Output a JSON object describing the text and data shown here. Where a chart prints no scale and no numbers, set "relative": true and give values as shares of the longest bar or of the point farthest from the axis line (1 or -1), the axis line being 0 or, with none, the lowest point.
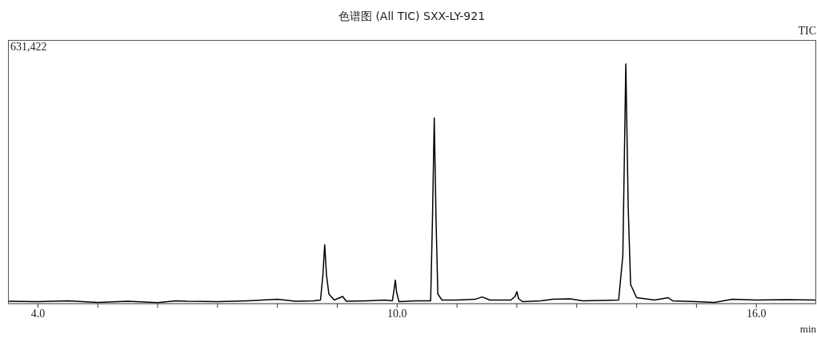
{
  "chart_data": {
    "type": "line",
    "title": "色谱图 (All TIC) SXX-LY-921",
    "xlabel": "min",
    "relative": true,
    "xlim": [
      3.5,
      17.0
    ],
    "xticks": [
      {
        "value": 4,
        "label": "4.0"
      },
      {
        "value": 5,
        "label": null
      },
      {
        "value": 6,
        "label": null
      },
      {
        "value": 7,
        "label": null
      },
      {
        "value": 8,
        "label": null
      },
      {
        "value": 9,
        "label": null
      },
      {
        "value": 10,
        "label": "10.0"
      },
      {
        "value": 11,
        "label": null
      },
      {
        "value": 12,
        "label": null
      },
      {
        "value": 13,
        "label": null
      },
      {
        "value": 14,
        "label": null
      },
      {
        "value": 15,
        "label": null
      },
      {
        "value": 16,
        "label": "16.0"
      }
    ],
    "annotations": [
      "631,422",
      "TIC"
    ],
    "marker": "none",
    "line_style": "solid",
    "x": [
      3.5,
      4.0,
      4.5,
      5.0,
      5.5,
      6.0,
      6.3,
      6.5,
      7.0,
      7.5,
      8.0,
      8.3,
      8.6,
      8.72,
      8.76,
      8.79,
      8.82,
      8.86,
      8.95,
      9.09,
      9.15,
      9.5,
      9.8,
      9.92,
      9.95,
      9.97,
      9.99,
      10.03,
      10.3,
      10.56,
      10.59,
      10.62,
      10.65,
      10.68,
      10.75,
      11.0,
      11.3,
      11.42,
      11.55,
      11.9,
      11.97,
      12.0,
      12.03,
      12.1,
      12.4,
      12.6,
      12.89,
      13.1,
      13.7,
      13.77,
      13.82,
      13.86,
      13.9,
      14.0,
      14.3,
      14.53,
      14.6,
      15.0,
      15.3,
      15.6,
      16.0,
      16.5,
      17.0
    ],
    "series": [
      {
        "color": "#000000",
        "values": [
          0.01,
          0.008,
          0.012,
          0.005,
          0.01,
          0.004,
          0.012,
          0.01,
          0.008,
          0.012,
          0.018,
          0.01,
          0.012,
          0.015,
          0.12,
          0.246,
          0.12,
          0.04,
          0.015,
          0.03,
          0.01,
          0.012,
          0.015,
          0.012,
          0.06,
          0.098,
          0.05,
          0.008,
          0.012,
          0.012,
          0.35,
          0.774,
          0.35,
          0.04,
          0.015,
          0.015,
          0.018,
          0.028,
          0.015,
          0.015,
          0.03,
          0.05,
          0.02,
          0.008,
          0.012,
          0.018,
          0.02,
          0.012,
          0.015,
          0.2,
          1.0,
          0.4,
          0.08,
          0.025,
          0.015,
          0.025,
          0.012,
          0.008,
          0.005,
          0.018,
          0.015,
          0.017,
          0.015
        ]
      }
    ]
  }
}
